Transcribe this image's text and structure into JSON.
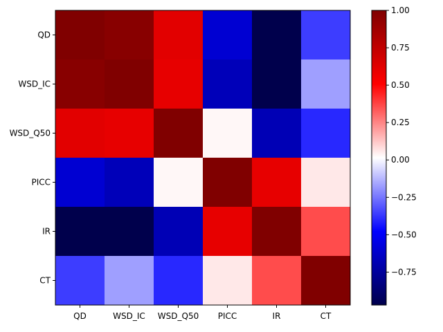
{
  "chart_data": {
    "type": "heatmap",
    "row_labels": [
      "QD",
      "WSD_IC",
      "WSD_Q50",
      "PICC",
      "IR",
      "CT"
    ],
    "col_labels": [
      "QD",
      "WSD_IC",
      "WSD_Q50",
      "PICC",
      "IR",
      "CT"
    ],
    "values": [
      [
        1.0,
        0.97,
        0.62,
        -0.6,
        -0.97,
        -0.36
      ],
      [
        0.97,
        1.0,
        0.6,
        -0.67,
        -0.97,
        -0.17
      ],
      [
        0.62,
        0.6,
        1.0,
        0.03,
        -0.68,
        -0.4
      ],
      [
        -0.6,
        -0.67,
        0.03,
        1.0,
        0.6,
        0.06
      ],
      [
        -0.97,
        -0.97,
        -0.68,
        0.6,
        1.0,
        0.36
      ],
      [
        -0.36,
        -0.17,
        -0.4,
        0.06,
        0.36,
        1.0
      ]
    ],
    "colormap": "seismic",
    "vmin": -0.97,
    "vmax": 1.0,
    "colorbar": {
      "ticks": [
        1.0,
        0.75,
        0.5,
        0.25,
        0.0,
        -0.25,
        -0.5,
        -0.75
      ],
      "tick_labels": [
        "1.00",
        "0.75",
        "0.50",
        "0.25",
        "0.00",
        "−0.25",
        "−0.50",
        "−0.75"
      ],
      "position": "right"
    },
    "title": "",
    "xlabel": "",
    "ylabel": ""
  }
}
